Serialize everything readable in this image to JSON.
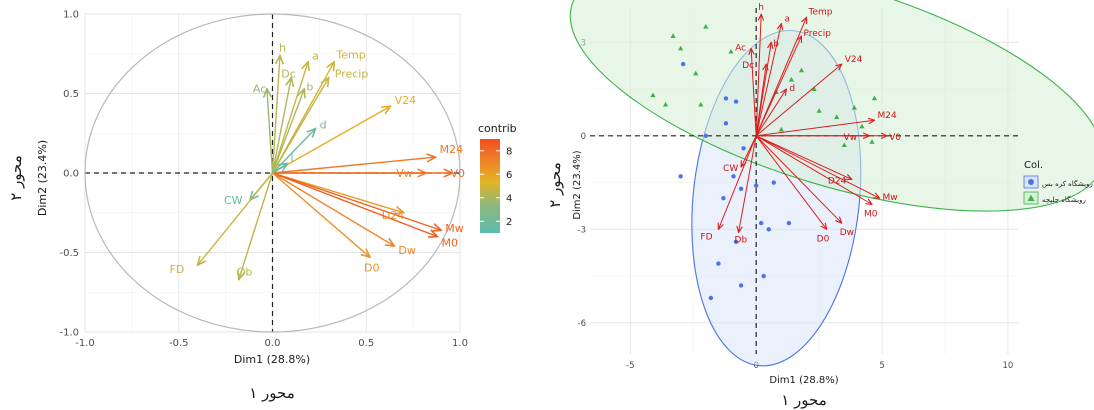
{
  "chart_data": [
    {
      "type": "scatter",
      "subtype": "pca-variable-correlation-circle",
      "xlabel": "Dim1 (28.8%)",
      "ylabel": "Dim2 (23.4%)",
      "xlabel_alt": "محور ۱",
      "ylabel_alt": "محور ۲",
      "xlim": [
        -1.0,
        1.0
      ],
      "ylim": [
        -1.0,
        1.0
      ],
      "x_ticks": [
        "-1.0",
        "-0.5",
        "0.0",
        "0.5",
        "1.0"
      ],
      "y_ticks": [
        "1.0",
        "0.5",
        "0.0",
        "-0.5",
        "-1.0"
      ],
      "grid": true,
      "legend": {
        "title": "contrib",
        "ticks": [
          "8",
          "6",
          "4",
          "2"
        ],
        "range": [
          1,
          9
        ],
        "position": "right",
        "colors": [
          "#5cbcb0",
          "#8fb87a",
          "#e5b324",
          "#f07b28",
          "#f24d1c"
        ]
      },
      "variables": [
        {
          "name": "Temp",
          "x": 0.33,
          "y": 0.7,
          "contrib": 4.5
        },
        {
          "name": "h",
          "x": 0.04,
          "y": 0.74,
          "contrib": 4.0
        },
        {
          "name": "a",
          "x": 0.19,
          "y": 0.7,
          "contrib": 4.2
        },
        {
          "name": "Precip",
          "x": 0.3,
          "y": 0.6,
          "contrib": 4.3
        },
        {
          "name": "Dc",
          "x": 0.1,
          "y": 0.6,
          "contrib": 3.8
        },
        {
          "name": "b",
          "x": 0.17,
          "y": 0.53,
          "contrib": 3.6
        },
        {
          "name": "Ac",
          "x": -0.03,
          "y": 0.53,
          "contrib": 3.3
        },
        {
          "name": "V24",
          "x": 0.63,
          "y": 0.42,
          "contrib": 5.2
        },
        {
          "name": "d",
          "x": 0.23,
          "y": 0.28,
          "contrib": 1.8
        },
        {
          "name": "M24",
          "x": 0.87,
          "y": 0.1,
          "contrib": 7.2
        },
        {
          "name": "Vw",
          "x": 0.82,
          "y": 0.0,
          "contrib": 6.8
        },
        {
          "name": "V0",
          "x": 0.96,
          "y": 0.0,
          "contrib": 7.5
        },
        {
          "name": "l",
          "x": 0.08,
          "y": 0.06,
          "contrib": 1.2
        },
        {
          "name": "D24",
          "x": 0.7,
          "y": -0.25,
          "contrib": 6.0
        },
        {
          "name": "Mw",
          "x": 0.9,
          "y": -0.36,
          "contrib": 8.0
        },
        {
          "name": "M0",
          "x": 0.88,
          "y": -0.4,
          "contrib": 8.2
        },
        {
          "name": "Dw",
          "x": 0.65,
          "y": -0.46,
          "contrib": 6.6
        },
        {
          "name": "D0",
          "x": 0.52,
          "y": -0.53,
          "contrib": 6.2
        },
        {
          "name": "CW",
          "x": -0.12,
          "y": -0.17,
          "contrib": 1.4
        },
        {
          "name": "Ob",
          "x": -0.18,
          "y": -0.67,
          "contrib": 4.0
        },
        {
          "name": "FD",
          "x": -0.4,
          "y": -0.58,
          "contrib": 4.4
        }
      ]
    },
    {
      "type": "scatter",
      "subtype": "pca-biplot",
      "xlabel": "Dim1 (28.8%)",
      "ylabel": "Dim2 (23.4%)",
      "xlabel_alt": "محور ۱",
      "ylabel_alt": "محور ۲",
      "xlim": [
        -6.6,
        10.4
      ],
      "ylim": [
        -7.0,
        4.1
      ],
      "x_ticks": [
        "-5",
        "0",
        "5",
        "10"
      ],
      "y_ticks": [
        "3",
        "0",
        "-3",
        "-6"
      ],
      "grid": true,
      "legend": {
        "title": "Col.",
        "position": "right",
        "groups": [
          {
            "label": "رویشگاه کره بس",
            "color": "#4a74e8",
            "marker": "circle"
          },
          {
            "label": "رویشگاه چلیچه",
            "color": "#3cb34a",
            "marker": "triangle"
          }
        ]
      },
      "ellipses": [
        {
          "group": "رویشگاه کره بس",
          "cx": 0.8,
          "cy": -2.0,
          "rx": 3.3,
          "ry": 5.4,
          "angle_deg": -6
        },
        {
          "group": "رویشگاه چلیچه",
          "cx": 3.2,
          "cy": 1.6,
          "rx": 11.0,
          "ry": 3.2,
          "angle_deg": -17
        }
      ],
      "individuals_group1": [
        {
          "x": -3.0,
          "y": -1.3
        },
        {
          "x": -2.9,
          "y": 2.3
        },
        {
          "x": -1.2,
          "y": 1.2
        },
        {
          "x": -0.8,
          "y": 1.1
        },
        {
          "x": -1.2,
          "y": 0.4
        },
        {
          "x": -0.5,
          "y": -0.4
        },
        {
          "x": -0.9,
          "y": -1.3
        },
        {
          "x": -0.6,
          "y": -1.7
        },
        {
          "x": -1.3,
          "y": -2.0
        },
        {
          "x": 0.0,
          "y": -1.6
        },
        {
          "x": 0.2,
          "y": -2.8
        },
        {
          "x": 1.3,
          "y": -2.8
        },
        {
          "x": 0.5,
          "y": -3.0
        },
        {
          "x": -0.8,
          "y": -3.4
        },
        {
          "x": -1.5,
          "y": -4.1
        },
        {
          "x": 0.3,
          "y": -4.5
        },
        {
          "x": -0.6,
          "y": -4.8
        },
        {
          "x": -1.8,
          "y": -5.2
        },
        {
          "x": 0.7,
          "y": -1.5
        },
        {
          "x": -2.0,
          "y": 0.0
        }
      ],
      "individuals_group2": [
        {
          "x": -3.3,
          "y": 3.2
        },
        {
          "x": -3.0,
          "y": 2.8
        },
        {
          "x": -2.4,
          "y": 2.0
        },
        {
          "x": -4.1,
          "y": 1.3
        },
        {
          "x": -3.6,
          "y": 1.0
        },
        {
          "x": -2.2,
          "y": 1.0
        },
        {
          "x": -2.0,
          "y": 3.5
        },
        {
          "x": -1.0,
          "y": 2.7
        },
        {
          "x": 0.8,
          "y": 1.4
        },
        {
          "x": 1.4,
          "y": 1.8
        },
        {
          "x": 1.8,
          "y": 2.1
        },
        {
          "x": 2.5,
          "y": 0.8
        },
        {
          "x": 3.2,
          "y": 0.6
        },
        {
          "x": 3.9,
          "y": 0.9
        },
        {
          "x": 4.2,
          "y": 0.3
        },
        {
          "x": 4.7,
          "y": 1.2
        },
        {
          "x": 3.5,
          "y": -0.3
        },
        {
          "x": 4.6,
          "y": -0.2
        },
        {
          "x": 2.3,
          "y": 1.5
        },
        {
          "x": 1.0,
          "y": 0.2
        }
      ],
      "variables": [
        {
          "name": "Temp",
          "x": 2.0,
          "y": 3.8
        },
        {
          "name": "h",
          "x": 0.2,
          "y": 3.9
        },
        {
          "name": "a",
          "x": 1.0,
          "y": 3.6
        },
        {
          "name": "Precip",
          "x": 1.8,
          "y": 3.2
        },
        {
          "name": "Ac",
          "x": -0.2,
          "y": 2.8
        },
        {
          "name": "b",
          "x": 0.6,
          "y": 3.0
        },
        {
          "name": "Dc",
          "x": 0.4,
          "y": 2.3
        },
        {
          "name": "V24",
          "x": 3.4,
          "y": 2.3
        },
        {
          "name": "d",
          "x": 1.2,
          "y": 1.5
        },
        {
          "name": "M24",
          "x": 4.7,
          "y": 0.5
        },
        {
          "name": "Vw",
          "x": 4.5,
          "y": 0.0
        },
        {
          "name": "V0",
          "x": 5.2,
          "y": 0.0
        },
        {
          "name": "CW",
          "x": -0.6,
          "y": -1.0
        },
        {
          "name": "D24",
          "x": 3.8,
          "y": -1.4
        },
        {
          "name": "Mw",
          "x": 4.9,
          "y": -2.0
        },
        {
          "name": "M0",
          "x": 4.6,
          "y": -2.2
        },
        {
          "name": "Dw",
          "x": 3.4,
          "y": -2.8
        },
        {
          "name": "D0",
          "x": 2.8,
          "y": -3.0
        },
        {
          "name": "Db",
          "x": -0.7,
          "y": -3.1
        },
        {
          "name": "FD",
          "x": -1.5,
          "y": -3.0
        }
      ]
    }
  ]
}
